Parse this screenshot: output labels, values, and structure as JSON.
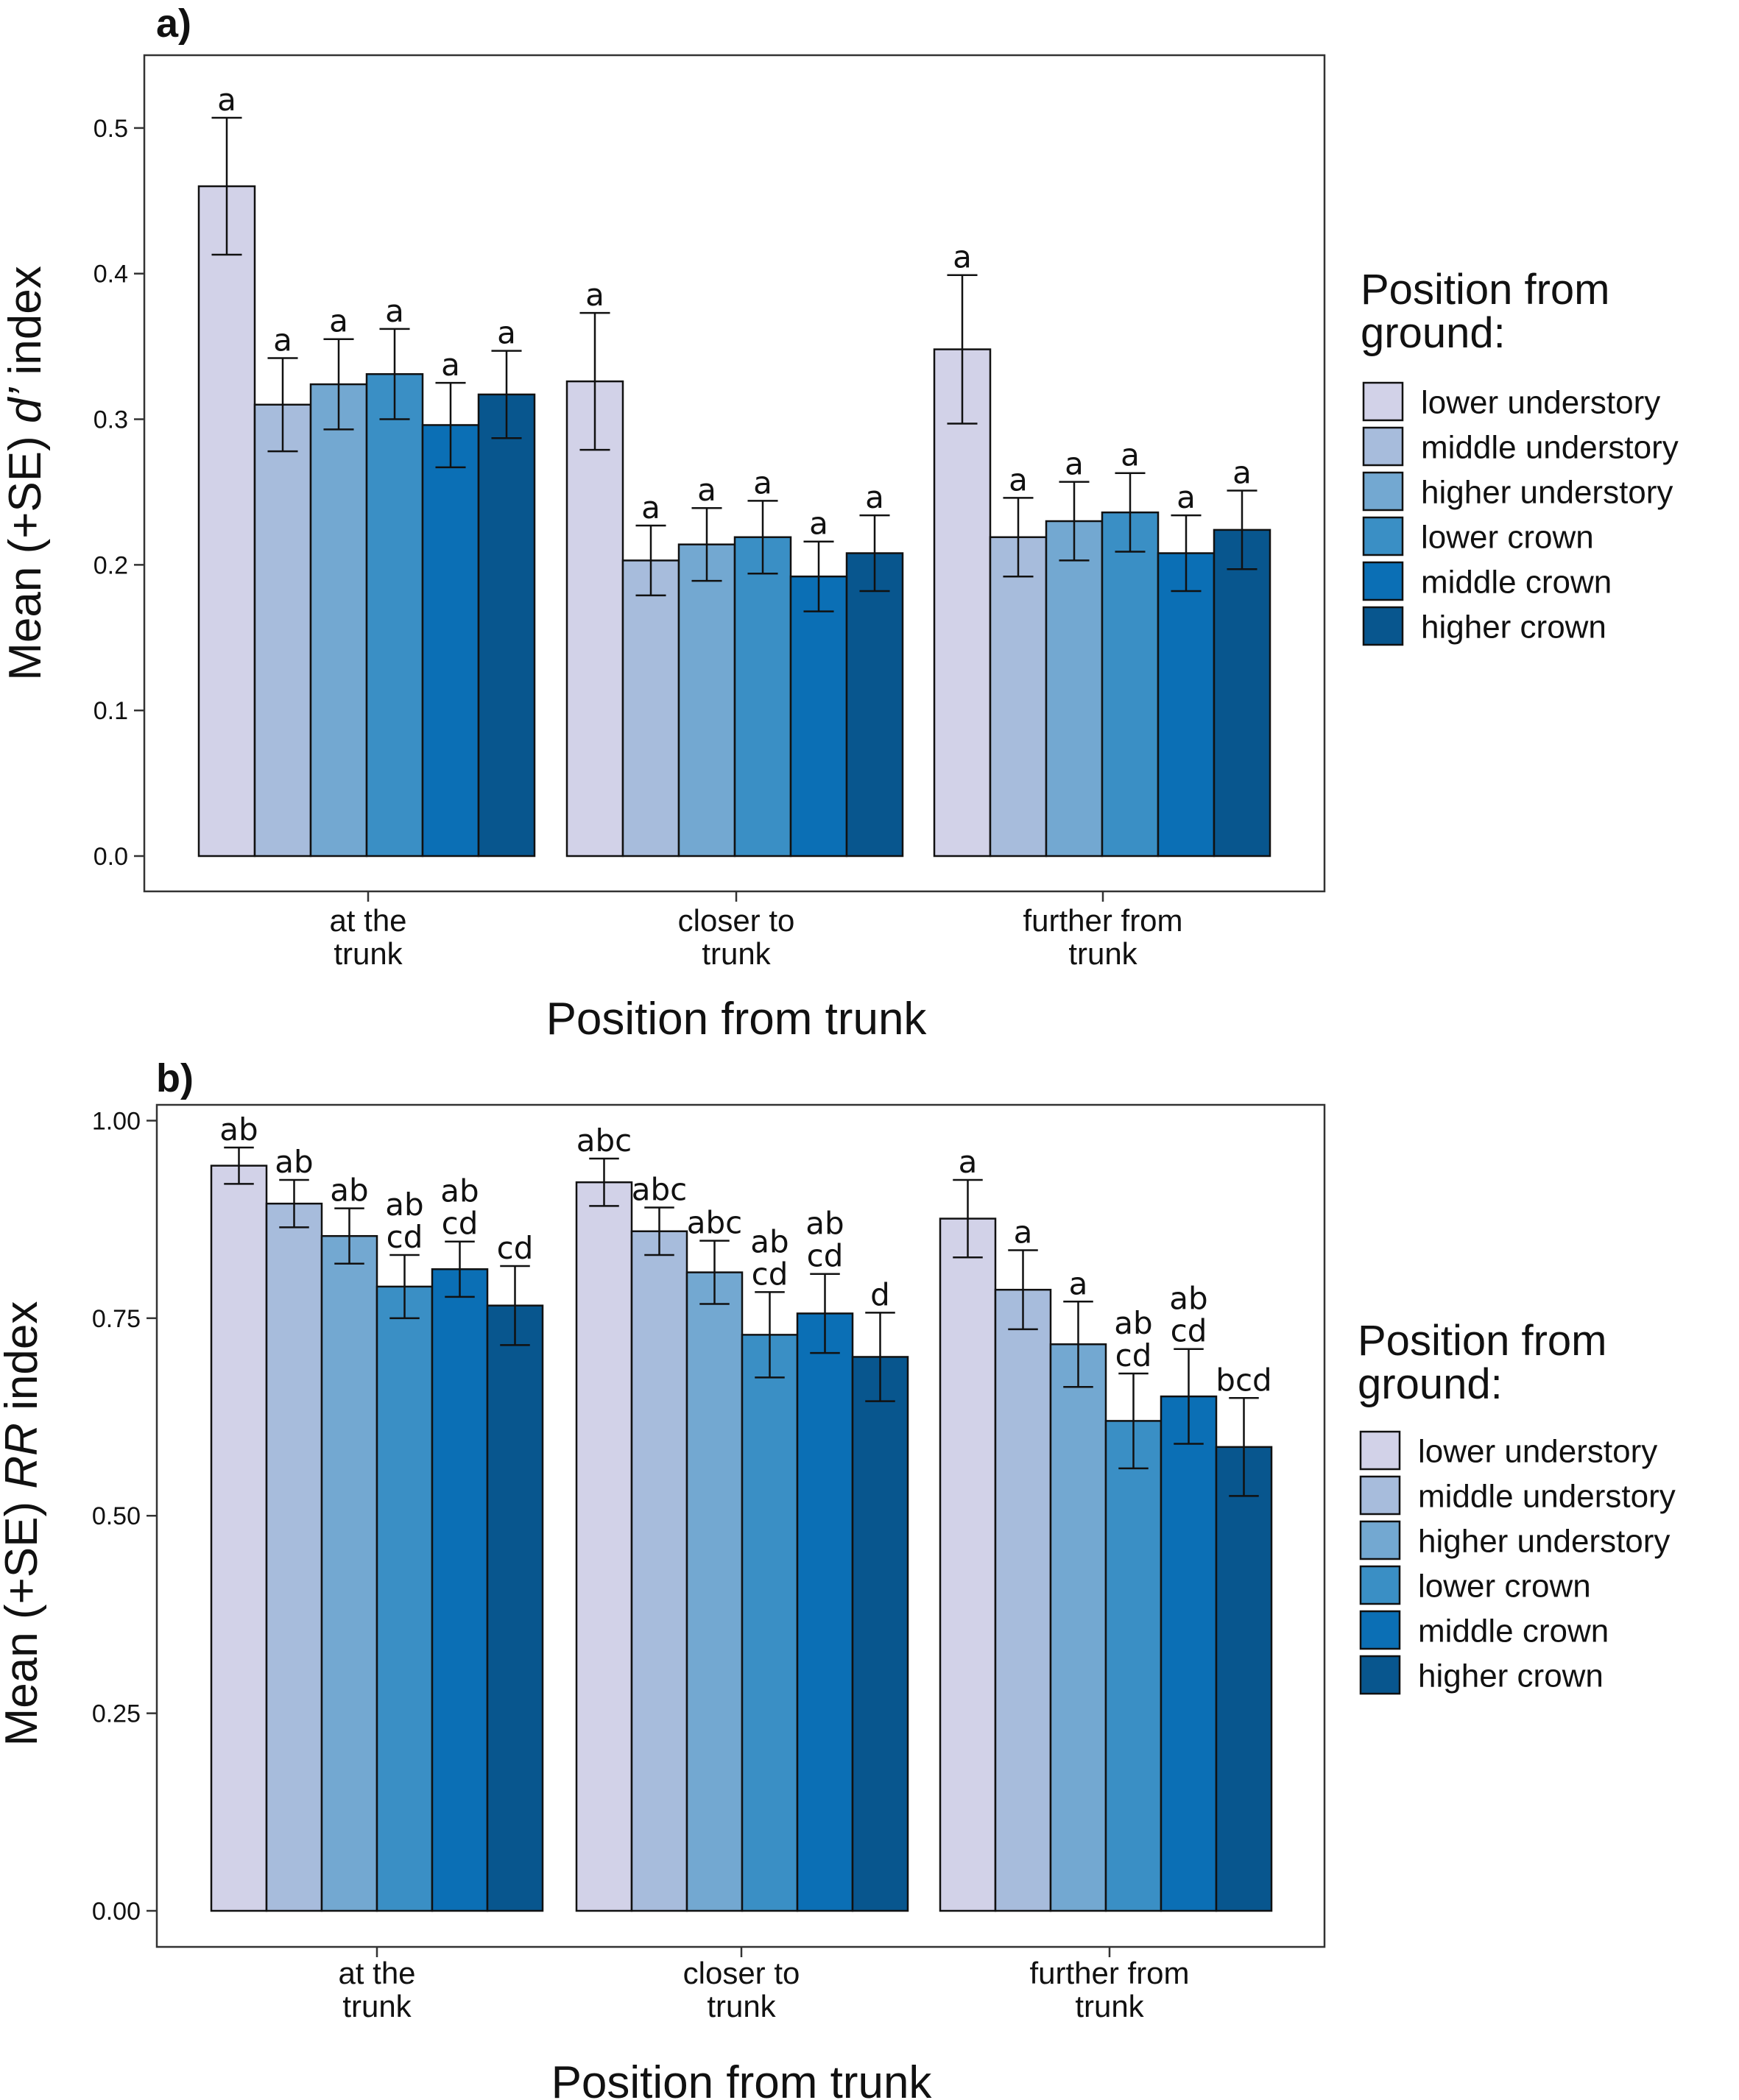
{
  "series_colors": [
    "#d2d2e8",
    "#a7bcdc",
    "#73a8d1",
    "#3a8fc5",
    "#0b6fb5",
    "#08568e"
  ],
  "legend": {
    "title_line1": "Position from",
    "title_line2": "ground:",
    "items": [
      "lower understory",
      "middle understory",
      "higher understory",
      "lower crown",
      "middle crown",
      "higher crown"
    ]
  },
  "chart_data": [
    {
      "panel_label": "a)",
      "type": "bar",
      "ylabel_pre": "Mean (+SE) ",
      "ylabel_ital": "d’",
      "ylabel_post": " index",
      "xlabel": "Position from trunk",
      "ylim": [
        0,
        0.55
      ],
      "yticks": [
        0.0,
        0.1,
        0.2,
        0.3,
        0.4,
        0.5
      ],
      "yticklabels": [
        "0.0",
        "0.1",
        "0.2",
        "0.3",
        "0.4",
        "0.5"
      ],
      "categories": [
        [
          "at the",
          "trunk"
        ],
        [
          "closer to",
          "trunk"
        ],
        [
          "further from",
          "trunk"
        ]
      ],
      "series": [
        {
          "name": "lower understory",
          "values": [
            0.46,
            0.326,
            0.348
          ],
          "se": [
            0.047,
            0.047,
            0.051
          ],
          "letters": [
            "a",
            "a",
            "a"
          ]
        },
        {
          "name": "middle understory",
          "values": [
            0.31,
            0.203,
            0.219
          ],
          "se": [
            0.032,
            0.024,
            0.027
          ],
          "letters": [
            "a",
            "a",
            "a"
          ]
        },
        {
          "name": "higher understory",
          "values": [
            0.324,
            0.214,
            0.23
          ],
          "se": [
            0.031,
            0.025,
            0.027
          ],
          "letters": [
            "a",
            "a",
            "a"
          ]
        },
        {
          "name": "lower crown",
          "values": [
            0.331,
            0.219,
            0.236
          ],
          "se": [
            0.031,
            0.025,
            0.027
          ],
          "letters": [
            "a",
            "a",
            "a"
          ]
        },
        {
          "name": "middle crown",
          "values": [
            0.296,
            0.192,
            0.208
          ],
          "se": [
            0.029,
            0.024,
            0.026
          ],
          "letters": [
            "a",
            "a",
            "a"
          ]
        },
        {
          "name": "higher crown",
          "values": [
            0.317,
            0.208,
            0.224
          ],
          "se": [
            0.03,
            0.026,
            0.027
          ],
          "letters": [
            "a",
            "a",
            "a"
          ]
        }
      ]
    },
    {
      "panel_label": "b)",
      "type": "bar",
      "ylabel_pre": "Mean (+SE) ",
      "ylabel_ital": "RR",
      "ylabel_post": " index",
      "xlabel": "Position from trunk",
      "ylim": [
        0,
        1.02
      ],
      "yticks": [
        0.0,
        0.25,
        0.5,
        0.75,
        1.0
      ],
      "yticklabels": [
        "0.00",
        "0.25",
        "0.50",
        "0.75",
        "1.00"
      ],
      "categories": [
        [
          "at the",
          "trunk"
        ],
        [
          "closer to",
          "trunk"
        ],
        [
          "further from",
          "trunk"
        ]
      ],
      "series": [
        {
          "name": "lower understory",
          "values": [
            0.943,
            0.922,
            0.876
          ],
          "se": [
            0.023,
            0.03,
            0.049
          ],
          "letters": [
            [
              "ab"
            ],
            [
              "abc"
            ],
            [
              "a"
            ]
          ]
        },
        {
          "name": "middle understory",
          "values": [
            0.895,
            0.86,
            0.786
          ],
          "se": [
            0.03,
            0.03,
            0.05
          ],
          "letters": [
            [
              "ab"
            ],
            [
              "abc"
            ],
            [
              "a"
            ]
          ]
        },
        {
          "name": "higher understory",
          "values": [
            0.854,
            0.808,
            0.717
          ],
          "se": [
            0.035,
            0.04,
            0.054
          ],
          "letters": [
            [
              "ab"
            ],
            [
              "abc"
            ],
            [
              "a"
            ]
          ]
        },
        {
          "name": "lower crown",
          "values": [
            0.79,
            0.729,
            0.62
          ],
          "se": [
            0.04,
            0.054,
            0.06
          ],
          "letters": [
            [
              "ab",
              "cd"
            ],
            [
              "ab",
              "cd"
            ],
            [
              "ab",
              "cd"
            ]
          ]
        },
        {
          "name": "middle crown",
          "values": [
            0.812,
            0.756,
            0.651
          ],
          "se": [
            0.035,
            0.05,
            0.06
          ],
          "letters": [
            [
              "ab",
              "cd"
            ],
            [
              "ab",
              "cd"
            ],
            [
              "ab",
              "cd"
            ]
          ]
        },
        {
          "name": "higher crown",
          "values": [
            0.766,
            0.701,
            0.587
          ],
          "se": [
            0.05,
            0.056,
            0.062
          ],
          "letters": [
            [
              "cd"
            ],
            [
              "d"
            ],
            [
              "bcd"
            ]
          ]
        }
      ]
    }
  ]
}
